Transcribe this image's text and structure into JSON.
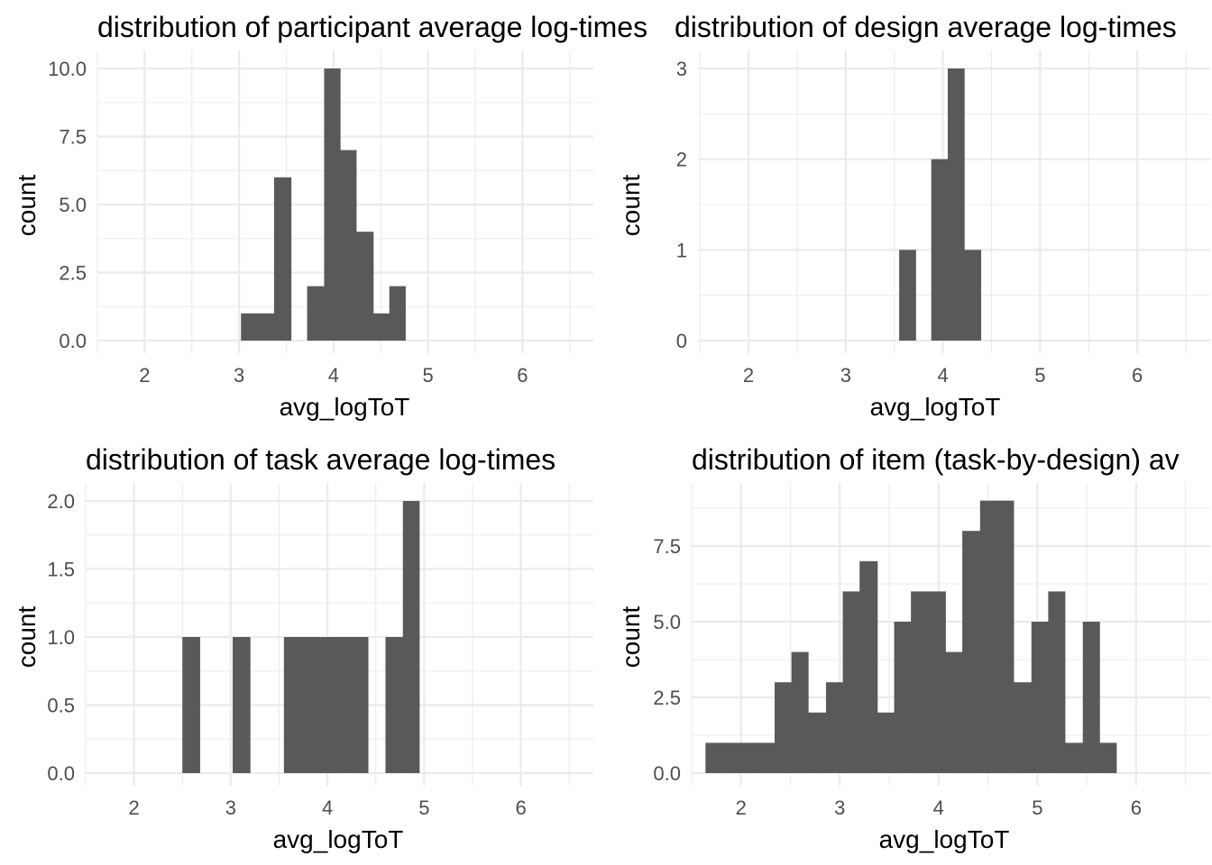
{
  "chart_data": [
    {
      "type": "bar",
      "title": "distribution of participant average log-times",
      "xlabel": "avg_logToT",
      "ylabel": "count",
      "xlim": [
        1.5,
        6.75
      ],
      "ylim": [
        0,
        10
      ],
      "x_ticks": [
        "2",
        "3",
        "4",
        "5",
        "6"
      ],
      "y_ticks": [
        "0.0",
        "2.5",
        "5.0",
        "7.5",
        "10.0"
      ],
      "grid": true,
      "bins": [
        {
          "x0": 3.02,
          "x1": 3.2,
          "count": 1
        },
        {
          "x0": 3.2,
          "x1": 3.37,
          "count": 1
        },
        {
          "x0": 3.37,
          "x1": 3.55,
          "count": 6
        },
        {
          "x0": 3.72,
          "x1": 3.9,
          "count": 2
        },
        {
          "x0": 3.9,
          "x1": 4.07,
          "count": 10
        },
        {
          "x0": 4.07,
          "x1": 4.24,
          "count": 7
        },
        {
          "x0": 4.24,
          "x1": 4.42,
          "count": 4
        },
        {
          "x0": 4.42,
          "x1": 4.59,
          "count": 1
        },
        {
          "x0": 4.59,
          "x1": 4.76,
          "count": 2
        }
      ]
    },
    {
      "type": "bar",
      "title": "distribution of design average log-times",
      "xlabel": "avg_logToT",
      "ylabel": "count",
      "xlim": [
        1.48,
        6.75
      ],
      "ylim": [
        0,
        3
      ],
      "x_ticks": [
        "2",
        "3",
        "4",
        "5",
        "6"
      ],
      "y_ticks": [
        "0",
        "1",
        "2",
        "3"
      ],
      "grid": true,
      "bins": [
        {
          "x0": 3.55,
          "x1": 3.72,
          "count": 1
        },
        {
          "x0": 3.88,
          "x1": 4.05,
          "count": 2
        },
        {
          "x0": 4.05,
          "x1": 4.22,
          "count": 3
        },
        {
          "x0": 4.22,
          "x1": 4.39,
          "count": 1
        }
      ]
    },
    {
      "type": "bar",
      "title": "distribution of task average log-times",
      "xlabel": "avg_logToT",
      "ylabel": "count",
      "xlim": [
        1.5,
        6.75
      ],
      "ylim": [
        0,
        2
      ],
      "x_ticks": [
        "2",
        "3",
        "4",
        "5",
        "6"
      ],
      "y_ticks": [
        "0.0",
        "0.5",
        "1.0",
        "1.5",
        "2.0"
      ],
      "grid": true,
      "bins": [
        {
          "x0": 2.5,
          "x1": 2.68,
          "count": 1
        },
        {
          "x0": 3.02,
          "x1": 3.2,
          "count": 1
        },
        {
          "x0": 3.55,
          "x1": 3.73,
          "count": 1
        },
        {
          "x0": 3.73,
          "x1": 3.9,
          "count": 1
        },
        {
          "x0": 3.9,
          "x1": 4.08,
          "count": 1
        },
        {
          "x0": 4.08,
          "x1": 4.25,
          "count": 1
        },
        {
          "x0": 4.25,
          "x1": 4.42,
          "count": 1
        },
        {
          "x0": 4.6,
          "x1": 4.78,
          "count": 1
        },
        {
          "x0": 4.78,
          "x1": 4.95,
          "count": 2
        }
      ]
    },
    {
      "type": "bar",
      "title": "distribution of item (task-by-design) av",
      "xlabel": "avg_logToT",
      "ylabel": "count",
      "xlim": [
        1.5,
        6.75
      ],
      "ylim": [
        0,
        9
      ],
      "x_ticks": [
        "2",
        "3",
        "4",
        "5",
        "6"
      ],
      "y_ticks": [
        "0.0",
        "2.5",
        "5.0",
        "7.5"
      ],
      "grid": true,
      "bins": [
        {
          "x0": 1.64,
          "x1": 1.82,
          "count": 1
        },
        {
          "x0": 1.82,
          "x1": 1.99,
          "count": 1
        },
        {
          "x0": 1.99,
          "x1": 2.16,
          "count": 1
        },
        {
          "x0": 2.16,
          "x1": 2.34,
          "count": 1
        },
        {
          "x0": 2.34,
          "x1": 2.51,
          "count": 3
        },
        {
          "x0": 2.51,
          "x1": 2.68,
          "count": 4
        },
        {
          "x0": 2.68,
          "x1": 2.86,
          "count": 2
        },
        {
          "x0": 2.86,
          "x1": 3.03,
          "count": 3
        },
        {
          "x0": 3.03,
          "x1": 3.2,
          "count": 6
        },
        {
          "x0": 3.2,
          "x1": 3.38,
          "count": 7
        },
        {
          "x0": 3.38,
          "x1": 3.55,
          "count": 2
        },
        {
          "x0": 3.55,
          "x1": 3.72,
          "count": 5
        },
        {
          "x0": 3.72,
          "x1": 3.9,
          "count": 6
        },
        {
          "x0": 3.9,
          "x1": 4.07,
          "count": 6
        },
        {
          "x0": 4.07,
          "x1": 4.24,
          "count": 4
        },
        {
          "x0": 4.24,
          "x1": 4.42,
          "count": 8
        },
        {
          "x0": 4.42,
          "x1": 4.59,
          "count": 9
        },
        {
          "x0": 4.59,
          "x1": 4.76,
          "count": 9
        },
        {
          "x0": 4.76,
          "x1": 4.94,
          "count": 3
        },
        {
          "x0": 4.94,
          "x1": 5.11,
          "count": 5
        },
        {
          "x0": 5.11,
          "x1": 5.28,
          "count": 6
        },
        {
          "x0": 5.28,
          "x1": 5.46,
          "count": 1
        },
        {
          "x0": 5.46,
          "x1": 5.63,
          "count": 5
        },
        {
          "x0": 5.63,
          "x1": 5.8,
          "count": 1
        }
      ]
    }
  ]
}
